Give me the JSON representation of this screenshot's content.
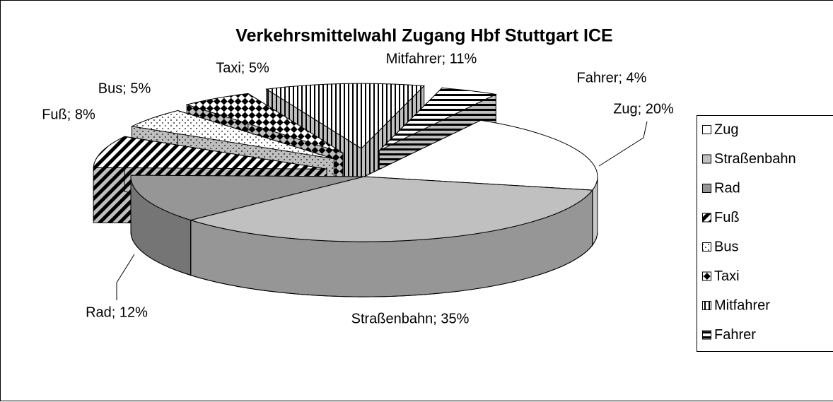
{
  "chart_data": {
    "type": "pie",
    "title": "Verkehrsmittelwahl Zugang Hbf Stuttgart ICE",
    "categories": [
      "Zug",
      "Straßenbahn",
      "Rad",
      "Fuß",
      "Bus",
      "Taxi",
      "Mitfahrer",
      "Fahrer"
    ],
    "values": [
      20,
      35,
      12,
      8,
      5,
      5,
      11,
      4
    ],
    "value_labels": [
      "Zug; 20%",
      "Straßenbahn; 35%",
      "Rad; 12%",
      "Fuß; 8%",
      "Bus; 5%",
      "Taxi; 5%",
      "Mitfahrer; 11%",
      "Fahrer; 4%"
    ],
    "colors": [
      "#ffffff",
      "#c0c0c0",
      "#969696",
      "#ffffff",
      "#ffffff",
      "#ffffff",
      "#ffffff",
      "#ffffff"
    ],
    "legend": "right"
  }
}
